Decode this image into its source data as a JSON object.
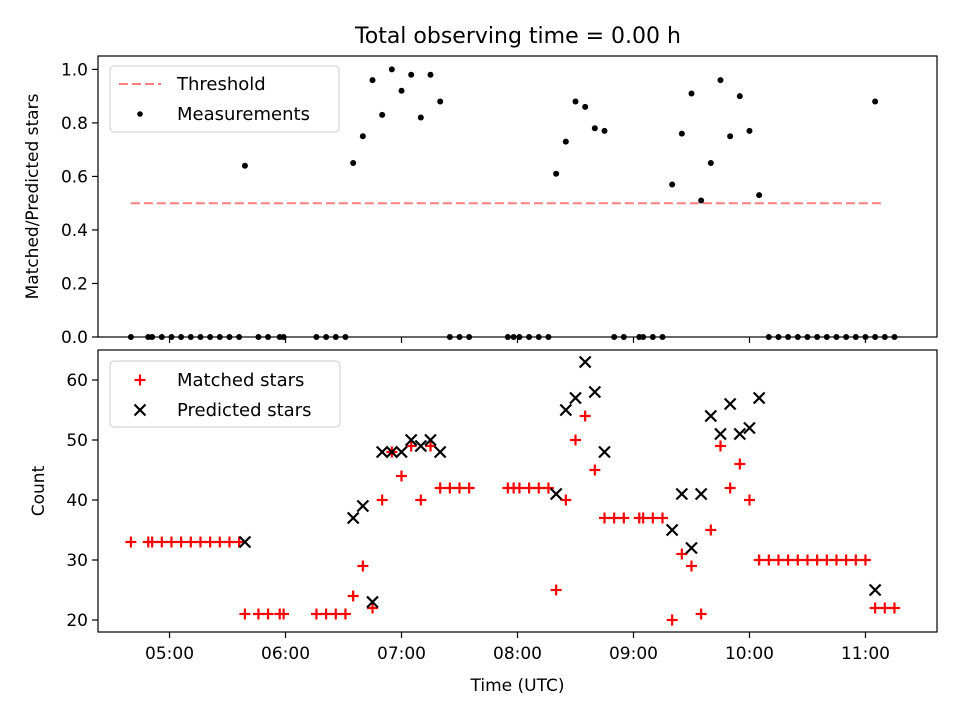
{
  "title": "Total observing time = 0.00 h",
  "colors": {
    "threshold": "#ff7f7f",
    "measurement": "#000000",
    "matched": "#ff0000",
    "predicted": "#000000"
  },
  "chart_data": [
    {
      "type": "scatter",
      "ylabel": "Matched/Predicted stars",
      "ylim": [
        0,
        1.05
      ],
      "yticks": [
        0.0,
        0.2,
        0.4,
        0.6,
        0.8,
        1.0
      ],
      "ytick_labels": [
        "0.0",
        "0.2",
        "0.4",
        "0.6",
        "0.8",
        "1.0"
      ],
      "legend_position": "top-left",
      "legend": [
        "Threshold",
        "Measurements"
      ],
      "threshold": {
        "name": "Threshold",
        "y": 0.5,
        "x_range": [
          "04:40",
          "11:08"
        ]
      },
      "series": [
        {
          "name": "Measurements",
          "points": [
            [
              "04:40",
              0
            ],
            [
              "04:49",
              0
            ],
            [
              "04:51",
              0
            ],
            [
              "04:56",
              0
            ],
            [
              "05:01",
              0
            ],
            [
              "05:06",
              0
            ],
            [
              "05:11",
              0
            ],
            [
              "05:16",
              0
            ],
            [
              "05:21",
              0
            ],
            [
              "05:26",
              0
            ],
            [
              "05:31",
              0
            ],
            [
              "05:36",
              0
            ],
            [
              "05:39",
              0.64
            ],
            [
              "05:46",
              0
            ],
            [
              "05:51",
              0
            ],
            [
              "05:57",
              0
            ],
            [
              "05:59",
              0
            ],
            [
              "06:16",
              0
            ],
            [
              "06:21",
              0
            ],
            [
              "06:26",
              0
            ],
            [
              "06:31",
              0
            ],
            [
              "06:35",
              0.65
            ],
            [
              "06:40",
              0.75
            ],
            [
              "06:45",
              0.96
            ],
            [
              "06:50",
              0.83
            ],
            [
              "06:55",
              1.0
            ],
            [
              "07:00",
              0.92
            ],
            [
              "07:05",
              0.98
            ],
            [
              "07:10",
              0.82
            ],
            [
              "07:15",
              0.98
            ],
            [
              "07:20",
              0.88
            ],
            [
              "07:25",
              0
            ],
            [
              "07:30",
              0
            ],
            [
              "07:35",
              0
            ],
            [
              "07:55",
              0
            ],
            [
              "07:58",
              0
            ],
            [
              "08:01",
              0
            ],
            [
              "08:06",
              0
            ],
            [
              "08:11",
              0
            ],
            [
              "08:16",
              0
            ],
            [
              "08:20",
              0.61
            ],
            [
              "08:25",
              0.73
            ],
            [
              "08:30",
              0.88
            ],
            [
              "08:35",
              0.86
            ],
            [
              "08:40",
              0.78
            ],
            [
              "08:45",
              0.77
            ],
            [
              "08:50",
              0
            ],
            [
              "08:55",
              0
            ],
            [
              "09:03",
              0
            ],
            [
              "09:05",
              0
            ],
            [
              "09:10",
              0
            ],
            [
              "09:15",
              0
            ],
            [
              "09:20",
              0.57
            ],
            [
              "09:25",
              0.76
            ],
            [
              "09:30",
              0.91
            ],
            [
              "09:35",
              0.51
            ],
            [
              "09:40",
              0.65
            ],
            [
              "09:45",
              0.96
            ],
            [
              "09:50",
              0.75
            ],
            [
              "09:55",
              0.9
            ],
            [
              "10:00",
              0.77
            ],
            [
              "10:05",
              0.53
            ],
            [
              "10:10",
              0
            ],
            [
              "10:15",
              0
            ],
            [
              "10:20",
              0
            ],
            [
              "10:25",
              0
            ],
            [
              "10:30",
              0
            ],
            [
              "10:35",
              0
            ],
            [
              "10:40",
              0
            ],
            [
              "10:45",
              0
            ],
            [
              "10:50",
              0
            ],
            [
              "10:55",
              0
            ],
            [
              "11:00",
              0
            ],
            [
              "11:05",
              0
            ],
            [
              "11:05",
              0.88
            ],
            [
              "11:10",
              0
            ],
            [
              "11:15",
              0
            ]
          ]
        }
      ]
    },
    {
      "type": "scatter",
      "xlabel": "Time (UTC)",
      "ylabel": "Count",
      "ylim": [
        18,
        65
      ],
      "yticks": [
        20,
        30,
        40,
        50,
        60
      ],
      "ytick_labels": [
        "20",
        "30",
        "40",
        "50",
        "60"
      ],
      "xlim": [
        "04:23",
        "11:37"
      ],
      "xticks": [
        "05:00",
        "06:00",
        "07:00",
        "08:00",
        "09:00",
        "10:00",
        "11:00"
      ],
      "legend_position": "top-left",
      "legend": [
        "Matched stars",
        "Predicted stars"
      ],
      "series": [
        {
          "name": "Matched stars",
          "marker": "+",
          "points": [
            [
              "04:40",
              33
            ],
            [
              "04:49",
              33
            ],
            [
              "04:51",
              33
            ],
            [
              "04:56",
              33
            ],
            [
              "05:01",
              33
            ],
            [
              "05:06",
              33
            ],
            [
              "05:11",
              33
            ],
            [
              "05:16",
              33
            ],
            [
              "05:21",
              33
            ],
            [
              "05:26",
              33
            ],
            [
              "05:31",
              33
            ],
            [
              "05:36",
              33
            ],
            [
              "05:39",
              21
            ],
            [
              "05:46",
              21
            ],
            [
              "05:51",
              21
            ],
            [
              "05:57",
              21
            ],
            [
              "05:59",
              21
            ],
            [
              "06:16",
              21
            ],
            [
              "06:21",
              21
            ],
            [
              "06:26",
              21
            ],
            [
              "06:31",
              21
            ],
            [
              "06:35",
              24
            ],
            [
              "06:40",
              29
            ],
            [
              "06:45",
              22
            ],
            [
              "06:50",
              40
            ],
            [
              "06:55",
              48
            ],
            [
              "07:00",
              44
            ],
            [
              "07:05",
              49
            ],
            [
              "07:10",
              40
            ],
            [
              "07:15",
              49
            ],
            [
              "07:20",
              42
            ],
            [
              "07:25",
              42
            ],
            [
              "07:30",
              42
            ],
            [
              "07:35",
              42
            ],
            [
              "07:55",
              42
            ],
            [
              "07:58",
              42
            ],
            [
              "08:01",
              42
            ],
            [
              "08:06",
              42
            ],
            [
              "08:11",
              42
            ],
            [
              "08:16",
              42
            ],
            [
              "08:20",
              25
            ],
            [
              "08:25",
              40
            ],
            [
              "08:30",
              50
            ],
            [
              "08:35",
              54
            ],
            [
              "08:40",
              45
            ],
            [
              "08:45",
              37
            ],
            [
              "08:50",
              37
            ],
            [
              "08:55",
              37
            ],
            [
              "09:03",
              37
            ],
            [
              "09:05",
              37
            ],
            [
              "09:10",
              37
            ],
            [
              "09:15",
              37
            ],
            [
              "09:20",
              20
            ],
            [
              "09:25",
              31
            ],
            [
              "09:30",
              29
            ],
            [
              "09:35",
              21
            ],
            [
              "09:40",
              35
            ],
            [
              "09:45",
              49
            ],
            [
              "09:50",
              42
            ],
            [
              "09:55",
              46
            ],
            [
              "10:00",
              40
            ],
            [
              "10:05",
              30
            ],
            [
              "10:10",
              30
            ],
            [
              "10:15",
              30
            ],
            [
              "10:20",
              30
            ],
            [
              "10:25",
              30
            ],
            [
              "10:30",
              30
            ],
            [
              "10:35",
              30
            ],
            [
              "10:40",
              30
            ],
            [
              "10:45",
              30
            ],
            [
              "10:50",
              30
            ],
            [
              "10:55",
              30
            ],
            [
              "11:00",
              30
            ],
            [
              "11:05",
              22
            ],
            [
              "11:10",
              22
            ],
            [
              "11:15",
              22
            ]
          ]
        },
        {
          "name": "Predicted stars",
          "marker": "x",
          "points": [
            [
              "05:39",
              33
            ],
            [
              "06:35",
              37
            ],
            [
              "06:40",
              39
            ],
            [
              "06:45",
              23
            ],
            [
              "06:50",
              48
            ],
            [
              "06:55",
              48
            ],
            [
              "07:00",
              48
            ],
            [
              "07:05",
              50
            ],
            [
              "07:10",
              49
            ],
            [
              "07:15",
              50
            ],
            [
              "07:20",
              48
            ],
            [
              "08:20",
              41
            ],
            [
              "08:25",
              55
            ],
            [
              "08:30",
              57
            ],
            [
              "08:35",
              63
            ],
            [
              "08:40",
              58
            ],
            [
              "08:45",
              48
            ],
            [
              "09:20",
              35
            ],
            [
              "09:25",
              41
            ],
            [
              "09:30",
              32
            ],
            [
              "09:35",
              41
            ],
            [
              "09:40",
              54
            ],
            [
              "09:45",
              51
            ],
            [
              "09:50",
              56
            ],
            [
              "09:55",
              51
            ],
            [
              "10:00",
              52
            ],
            [
              "10:05",
              57
            ],
            [
              "11:05",
              25
            ]
          ]
        }
      ]
    }
  ]
}
